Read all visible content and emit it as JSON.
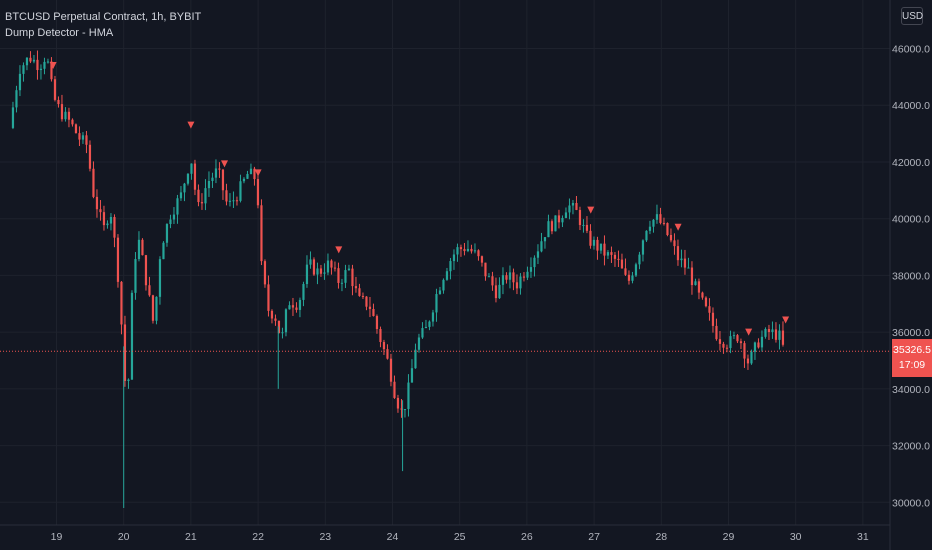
{
  "legend": {
    "title": "BTCUSD Perpetual Contract, 1h, BYBIT",
    "indicator": "Dump Detector - HMA"
  },
  "currency_button": "USD",
  "current_price": {
    "value": "35326.5",
    "countdown": "17:09",
    "color": "#ef5350"
  },
  "colors": {
    "background": "#131722",
    "grid": "#1e222d",
    "up": "#26a69a",
    "down": "#ef5350",
    "signal": "#ef5350",
    "text": "#b2b5be"
  },
  "chart_data": {
    "type": "candlestick",
    "title": "BTCUSD Perpetual Contract, 1h, BYBIT",
    "indicator": "Dump Detector - HMA",
    "y_ticks": [
      "46000.0",
      "44000.0",
      "42000.0",
      "40000.0",
      "38000.0",
      "36000.0",
      "34000.0",
      "32000.0",
      "30000.0"
    ],
    "x_ticks": [
      "19",
      "20",
      "21",
      "22",
      "23",
      "24",
      "25",
      "26",
      "27",
      "28",
      "29",
      "30",
      "31"
    ],
    "ylim": [
      29200,
      46900
    ],
    "grid": true,
    "current_price": 35326.5,
    "price_path": [
      [
        "18.3",
        43200
      ],
      [
        "18.45",
        45300
      ],
      [
        "18.6",
        45700
      ],
      [
        "18.75",
        45400
      ],
      [
        "18.85",
        45800
      ],
      [
        "18.95",
        44300
      ],
      [
        "19.05",
        43800
      ],
      [
        "19.2",
        43400
      ],
      [
        "19.35",
        42800
      ],
      [
        "19.45",
        42600
      ],
      [
        "19.55",
        40900
      ],
      [
        "19.7",
        39600
      ],
      [
        "19.8",
        40400
      ],
      [
        "19.9",
        38500
      ],
      [
        "20.0",
        35200
      ],
      [
        "20.05",
        32800
      ],
      [
        "20.1",
        36500
      ],
      [
        "20.2",
        39500
      ],
      [
        "20.3",
        38300
      ],
      [
        "20.45",
        36200
      ],
      [
        "20.55",
        39000
      ],
      [
        "20.7",
        40200
      ],
      [
        "20.85",
        40800
      ],
      [
        "21.0",
        42200
      ],
      [
        "21.1",
        40300
      ],
      [
        "21.25",
        41300
      ],
      [
        "21.4",
        41700
      ],
      [
        "21.55",
        40400
      ],
      [
        "21.7",
        40900
      ],
      [
        "21.85",
        41600
      ],
      [
        "21.98",
        41400
      ],
      [
        "22.05",
        38300
      ],
      [
        "22.15",
        36800
      ],
      [
        "22.25",
        36600
      ],
      [
        "22.35",
        35700
      ],
      [
        "22.45",
        37100
      ],
      [
        "22.6",
        37000
      ],
      [
        "22.75",
        38400
      ],
      [
        "22.9",
        38100
      ],
      [
        "23.05",
        38400
      ],
      [
        "23.2",
        37800
      ],
      [
        "23.35",
        38200
      ],
      [
        "23.5",
        37100
      ],
      [
        "23.65",
        37000
      ],
      [
        "23.8",
        35900
      ],
      [
        "23.95",
        34800
      ],
      [
        "24.05",
        33700
      ],
      [
        "24.15",
        33100
      ],
      [
        "24.25",
        34100
      ],
      [
        "24.35",
        35600
      ],
      [
        "24.5",
        36100
      ],
      [
        "24.65",
        37300
      ],
      [
        "24.8",
        38300
      ],
      [
        "24.95",
        38900
      ],
      [
        "25.1",
        39000
      ],
      [
        "25.25",
        38700
      ],
      [
        "25.4",
        38000
      ],
      [
        "25.55",
        37400
      ],
      [
        "25.7",
        38000
      ],
      [
        "25.85",
        37700
      ],
      [
        "26.0",
        38300
      ],
      [
        "26.15",
        38900
      ],
      [
        "26.3",
        39700
      ],
      [
        "26.45",
        39900
      ],
      [
        "26.6",
        40500
      ],
      [
        "26.75",
        40200
      ],
      [
        "26.9",
        39300
      ],
      [
        "27.05",
        39000
      ],
      [
        "27.2",
        38700
      ],
      [
        "27.35",
        38500
      ],
      [
        "27.5",
        37700
      ],
      [
        "27.65",
        38700
      ],
      [
        "27.8",
        39900
      ],
      [
        "27.95",
        40000
      ],
      [
        "28.1",
        39400
      ],
      [
        "28.25",
        38600
      ],
      [
        "28.4",
        38200
      ],
      [
        "28.55",
        37300
      ],
      [
        "28.7",
        36600
      ],
      [
        "28.85",
        35800
      ],
      [
        "29.0",
        35600
      ],
      [
        "29.15",
        35900
      ],
      [
        "29.3",
        34900
      ],
      [
        "29.45",
        35700
      ],
      [
        "29.6",
        36000
      ],
      [
        "29.75",
        35900
      ],
      [
        "29.83",
        35326
      ]
    ],
    "signal_markers": [
      "18.95",
      "21.0",
      "21.5",
      "22.0",
      "23.2",
      "26.95",
      "28.25",
      "29.3",
      "29.85"
    ]
  }
}
